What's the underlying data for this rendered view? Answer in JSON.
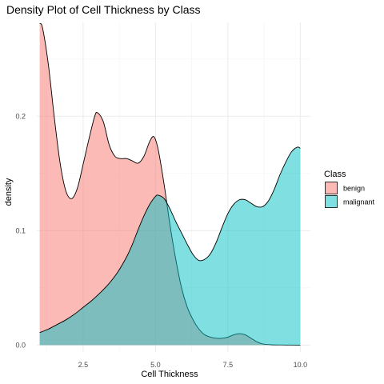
{
  "chart_data": {
    "type": "area",
    "title": "Density Plot of Cell Thickness by Class",
    "xlabel": "Cell Thickness",
    "ylabel": "density",
    "xlim": [
      0.9,
      10.35
    ],
    "ylim": [
      -0.006,
      0.282
    ],
    "x_ticks": [
      2.5,
      5.0,
      7.5,
      10.0
    ],
    "x_tick_labels": [
      "2.5",
      "5.0",
      "7.5",
      "10.0"
    ],
    "y_ticks": [
      0.0,
      0.1,
      0.2
    ],
    "y_tick_labels": [
      "0.0",
      "0.1",
      "0.2"
    ],
    "grid": true,
    "legend": {
      "title": "Class",
      "position": "right"
    },
    "series": [
      {
        "name": "benign",
        "color": "#F8766D",
        "fill_opacity": 0.5,
        "points": [
          [
            1.0,
            0.281
          ],
          [
            1.1,
            0.277
          ],
          [
            1.3,
            0.245
          ],
          [
            1.5,
            0.2
          ],
          [
            1.7,
            0.16
          ],
          [
            1.9,
            0.135
          ],
          [
            2.1,
            0.128
          ],
          [
            2.3,
            0.137
          ],
          [
            2.5,
            0.158
          ],
          [
            2.7,
            0.18
          ],
          [
            2.9,
            0.2
          ],
          [
            3.0,
            0.203
          ],
          [
            3.2,
            0.195
          ],
          [
            3.4,
            0.175
          ],
          [
            3.6,
            0.165
          ],
          [
            3.8,
            0.163
          ],
          [
            4.0,
            0.163
          ],
          [
            4.2,
            0.161
          ],
          [
            4.4,
            0.159
          ],
          [
            4.6,
            0.165
          ],
          [
            4.8,
            0.178
          ],
          [
            4.95,
            0.182
          ],
          [
            5.1,
            0.17
          ],
          [
            5.3,
            0.14
          ],
          [
            5.5,
            0.105
          ],
          [
            5.7,
            0.075
          ],
          [
            5.9,
            0.05
          ],
          [
            6.1,
            0.033
          ],
          [
            6.3,
            0.022
          ],
          [
            6.5,
            0.014
          ],
          [
            6.7,
            0.009
          ],
          [
            6.9,
            0.007
          ],
          [
            7.1,
            0.006
          ],
          [
            7.3,
            0.006
          ],
          [
            7.5,
            0.007
          ],
          [
            7.7,
            0.009
          ],
          [
            7.9,
            0.01
          ],
          [
            8.1,
            0.009
          ],
          [
            8.3,
            0.006
          ],
          [
            8.5,
            0.003
          ],
          [
            8.7,
            0.001
          ],
          [
            9.0,
            0.0003
          ],
          [
            9.5,
            0.0001
          ],
          [
            10.0,
            0.0
          ]
        ]
      },
      {
        "name": "malignant",
        "color": "#00BFC4",
        "fill_opacity": 0.5,
        "points": [
          [
            1.0,
            0.011
          ],
          [
            1.3,
            0.014
          ],
          [
            1.6,
            0.018
          ],
          [
            1.9,
            0.022
          ],
          [
            2.2,
            0.027
          ],
          [
            2.5,
            0.033
          ],
          [
            2.8,
            0.039
          ],
          [
            3.1,
            0.046
          ],
          [
            3.4,
            0.054
          ],
          [
            3.7,
            0.064
          ],
          [
            4.0,
            0.077
          ],
          [
            4.2,
            0.088
          ],
          [
            4.4,
            0.101
          ],
          [
            4.6,
            0.113
          ],
          [
            4.8,
            0.123
          ],
          [
            5.0,
            0.13
          ],
          [
            5.1,
            0.131
          ],
          [
            5.3,
            0.128
          ],
          [
            5.5,
            0.119
          ],
          [
            5.7,
            0.108
          ],
          [
            5.9,
            0.098
          ],
          [
            6.1,
            0.088
          ],
          [
            6.3,
            0.079
          ],
          [
            6.5,
            0.074
          ],
          [
            6.7,
            0.075
          ],
          [
            6.9,
            0.08
          ],
          [
            7.1,
            0.09
          ],
          [
            7.3,
            0.103
          ],
          [
            7.5,
            0.115
          ],
          [
            7.7,
            0.123
          ],
          [
            7.9,
            0.127
          ],
          [
            8.1,
            0.127
          ],
          [
            8.3,
            0.124
          ],
          [
            8.5,
            0.121
          ],
          [
            8.7,
            0.121
          ],
          [
            8.9,
            0.126
          ],
          [
            9.1,
            0.136
          ],
          [
            9.3,
            0.149
          ],
          [
            9.5,
            0.16
          ],
          [
            9.7,
            0.169
          ],
          [
            9.9,
            0.173
          ],
          [
            10.0,
            0.172
          ]
        ]
      }
    ]
  }
}
